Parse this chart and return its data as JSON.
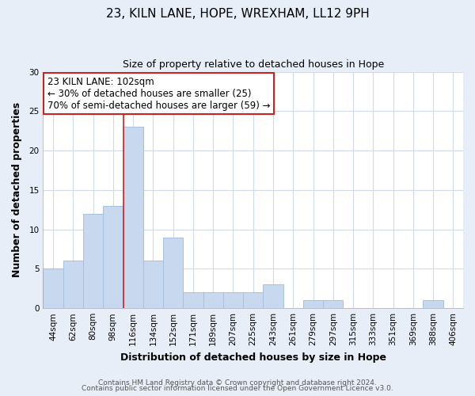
{
  "title": "23, KILN LANE, HOPE, WREXHAM, LL12 9PH",
  "subtitle": "Size of property relative to detached houses in Hope",
  "xlabel": "Distribution of detached houses by size in Hope",
  "ylabel": "Number of detached properties",
  "bin_labels": [
    "44sqm",
    "62sqm",
    "80sqm",
    "98sqm",
    "116sqm",
    "134sqm",
    "152sqm",
    "171sqm",
    "189sqm",
    "207sqm",
    "225sqm",
    "243sqm",
    "261sqm",
    "279sqm",
    "297sqm",
    "315sqm",
    "333sqm",
    "351sqm",
    "369sqm",
    "388sqm",
    "406sqm"
  ],
  "bar_heights": [
    5,
    6,
    12,
    13,
    23,
    6,
    9,
    2,
    2,
    2,
    2,
    3,
    0,
    1,
    1,
    0,
    0,
    0,
    0,
    1,
    0
  ],
  "bar_color": "#c8d8ee",
  "bar_edge_color": "#a8c0dc",
  "vline_x": 4.0,
  "vline_color": "#cc2222",
  "annotation_box_text": "23 KILN LANE: 102sqm\n← 30% of detached houses are smaller (25)\n70% of semi-detached houses are larger (59) →",
  "annotation_box_color": "#cc2222",
  "ylim": [
    0,
    30
  ],
  "yticks": [
    0,
    5,
    10,
    15,
    20,
    25,
    30
  ],
  "footer_line1": "Contains HM Land Registry data © Crown copyright and database right 2024.",
  "footer_line2": "Contains public sector information licensed under the Open Government Licence v3.0.",
  "fig_bg_color": "#e8eef7",
  "plot_bg_color": "#ffffff",
  "grid_color": "#d0daea",
  "title_fontsize": 11,
  "subtitle_fontsize": 9,
  "axis_label_fontsize": 9,
  "tick_fontsize": 7.5,
  "annotation_fontsize": 8.5,
  "footer_fontsize": 6.5
}
